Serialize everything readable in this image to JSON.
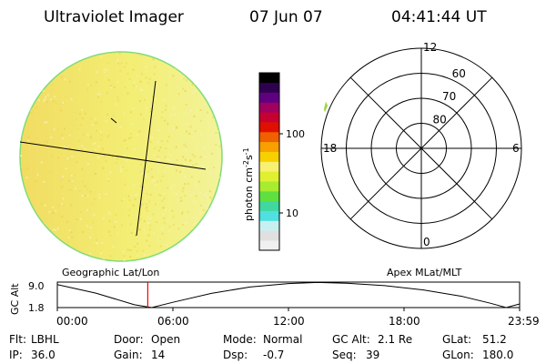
{
  "header": {
    "instrument": "Ultraviolet Imager",
    "date": "07 Jun 07",
    "time": "04:41:44 UT"
  },
  "colorbar": {
    "label": "photon cm",
    "label_exp1": "-2",
    "label_s": "s",
    "label_exp2": "-1",
    "ticks": [
      {
        "label": "100",
        "value": 100
      },
      {
        "label": "10",
        "value": 10
      }
    ],
    "colors": [
      "#f0f0f0",
      "#e0e0e0",
      "#c8f0f0",
      "#50e0e0",
      "#40d8a0",
      "#60e040",
      "#a8ec30",
      "#e0f030",
      "#f8f070",
      "#f8d000",
      "#f8a000",
      "#f06000",
      "#e01000",
      "#c80030",
      "#a00060",
      "#600080",
      "#300050",
      "#000000"
    ]
  },
  "image": {
    "colors": {
      "base": "#f3ee74",
      "left": "#f2dc62",
      "right": "#f3f39a",
      "limb": "#7edc7a"
    }
  },
  "polar_plot": {
    "mlt_labels": [
      {
        "label": "12",
        "mlt": 12
      },
      {
        "label": "18",
        "mlt": 18
      },
      {
        "label": "6",
        "mlt": 6
      },
      {
        "label": "0",
        "mlt": 0
      }
    ],
    "lat_labels": [
      {
        "label": "60",
        "mlat": 60
      },
      {
        "label": "70",
        "mlat": 70
      },
      {
        "label": "80",
        "mlat": 80
      }
    ],
    "rings": [
      60,
      70,
      80
    ],
    "min_lat": 50
  },
  "coords": {
    "left_label": "Geographic Lat/Lon",
    "right_label": "Apex MLat/MLT"
  },
  "altitude_plot": {
    "ylabel": "GC Alt",
    "yticks": [
      "9.0",
      "1.8"
    ],
    "ylim": [
      1.8,
      9.0
    ],
    "xticks": [
      "00:00",
      "06:00",
      "12:00",
      "18:00",
      "23:59"
    ],
    "current_time_label": "04:41:44",
    "marker_color": "#ff0000",
    "series": [
      {
        "t": 0.0,
        "alt": 8.3
      },
      {
        "t": 2.0,
        "alt": 5.9
      },
      {
        "t": 4.0,
        "alt": 2.6
      },
      {
        "t": 4.9,
        "alt": 1.8
      },
      {
        "t": 6.0,
        "alt": 3.3
      },
      {
        "t": 8.0,
        "alt": 5.8
      },
      {
        "t": 10.0,
        "alt": 7.6
      },
      {
        "t": 12.0,
        "alt": 8.6
      },
      {
        "t": 13.5,
        "alt": 8.9
      },
      {
        "t": 15.0,
        "alt": 8.7
      },
      {
        "t": 17.0,
        "alt": 8.0
      },
      {
        "t": 19.0,
        "alt": 6.8
      },
      {
        "t": 21.0,
        "alt": 5.0
      },
      {
        "t": 22.5,
        "alt": 3.0
      },
      {
        "t": 23.3,
        "alt": 1.8
      },
      {
        "t": 23.98,
        "alt": 2.8
      }
    ]
  },
  "info": [
    {
      "label": "Flt:",
      "value": "LBHL"
    },
    {
      "label": "Door:",
      "value": "Open"
    },
    {
      "label": "Mode:",
      "value": "Normal"
    },
    {
      "label": "GC Alt:",
      "value": "2.1 Re"
    },
    {
      "label": "GLat:",
      "value": "51.2"
    },
    {
      "label": "IP:",
      "value": "36.0"
    },
    {
      "label": "Gain:",
      "value": "14"
    },
    {
      "label": "Dsp:",
      "value": "-0.7"
    },
    {
      "label": "Seq:",
      "value": "39"
    },
    {
      "label": "GLon:",
      "value": "180.0"
    }
  ]
}
